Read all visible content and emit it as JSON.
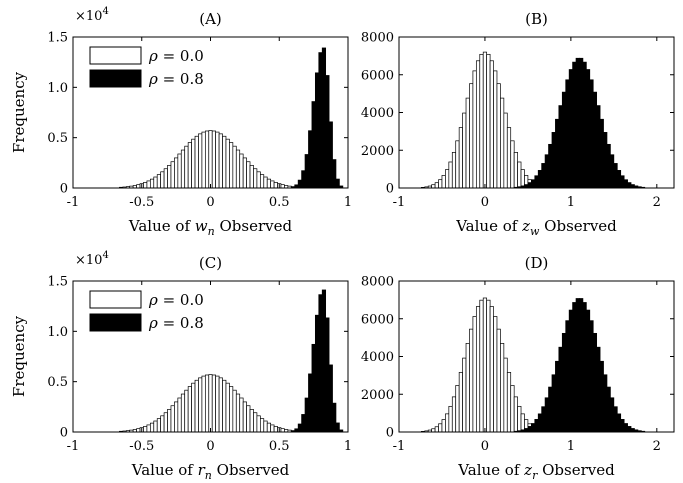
{
  "figure": {
    "panels": [
      {
        "title": "(A)",
        "ylabel": "Frequency",
        "xlabel_parts": [
          "Value of ",
          "w",
          "n",
          " Observed"
        ],
        "exponent_parts": [
          "×10",
          "4"
        ],
        "xticks": [
          "-1",
          "-0.5",
          "0",
          "0.5",
          "1"
        ],
        "yticks": [
          "0",
          "0.5",
          "1.0",
          "1.5"
        ],
        "legend": [
          {
            "sym": "ρ",
            "eq": " = 0.0",
            "fill": "#ffffff"
          },
          {
            "sym": "ρ",
            "eq": " = 0.8",
            "fill": "#000000"
          }
        ]
      },
      {
        "title": "(B)",
        "ylabel": "",
        "xlabel_parts": [
          "Value of ",
          "z",
          "w",
          " Observed"
        ],
        "exponent_parts": [
          "",
          ""
        ],
        "xticks": [
          "-1",
          "0",
          "1",
          "2"
        ],
        "yticks": [
          "0",
          "2000",
          "4000",
          "6000",
          "8000"
        ],
        "legend": []
      },
      {
        "title": "(C)",
        "ylabel": "Frequency",
        "xlabel_parts": [
          "Value of ",
          "r",
          "n",
          " Observed"
        ],
        "exponent_parts": [
          "×10",
          "4"
        ],
        "xticks": [
          "-1",
          "-0.5",
          "0",
          "0.5",
          "1"
        ],
        "yticks": [
          "0",
          "0.5",
          "1.0",
          "1.5"
        ],
        "legend": [
          {
            "sym": "ρ",
            "eq": " = 0.0",
            "fill": "#ffffff"
          },
          {
            "sym": "ρ",
            "eq": " = 0.8",
            "fill": "#000000"
          }
        ]
      },
      {
        "title": "(D)",
        "ylabel": "",
        "xlabel_parts": [
          "Value of ",
          "z",
          "r",
          " Observed"
        ],
        "exponent_parts": [
          "",
          ""
        ],
        "xticks": [
          "-1",
          "0",
          "1",
          "2"
        ],
        "yticks": [
          "0",
          "2000",
          "4000",
          "6000",
          "8000"
        ],
        "legend": []
      }
    ]
  },
  "chart_data": [
    {
      "type": "bar",
      "title": "(A)",
      "xlabel": "Value of w_n Observed",
      "ylabel": "Frequency",
      "y_multiplier": "×10^4",
      "xlim": [
        -1,
        1
      ],
      "ylim": [
        0,
        15000
      ],
      "bin_width": 0.025,
      "series": [
        {
          "name": "ρ = 0.0",
          "color": "#ffffff",
          "shape": "normal",
          "center": 0.0,
          "sd": 0.22,
          "peak": 5700,
          "bins": "-0.85 to 0.85"
        },
        {
          "name": "ρ = 0.8",
          "color": "#000000",
          "shape": "skewed",
          "mode": 0.82,
          "peak": 14000,
          "bins": "0.45 to 0.95"
        }
      ]
    },
    {
      "type": "bar",
      "title": "(B)",
      "xlabel": "Value of z_w Observed",
      "ylabel": "",
      "xlim": [
        -1,
        2.2
      ],
      "ylim": [
        0,
        8000
      ],
      "bin_width": 0.04,
      "series": [
        {
          "name": "ρ = 0.0",
          "color": "#ffffff",
          "shape": "normal",
          "center": 0.0,
          "sd": 0.22,
          "peak": 7200
        },
        {
          "name": "ρ = 0.8",
          "color": "#000000",
          "shape": "normal",
          "center": 1.1,
          "sd": 0.23,
          "peak": 6900
        }
      ]
    },
    {
      "type": "bar",
      "title": "(C)",
      "xlabel": "Value of r_n Observed",
      "ylabel": "Frequency",
      "y_multiplier": "×10^4",
      "xlim": [
        -1,
        1
      ],
      "ylim": [
        0,
        15000
      ],
      "bin_width": 0.025,
      "series": [
        {
          "name": "ρ = 0.0",
          "color": "#ffffff",
          "shape": "normal",
          "center": 0.0,
          "sd": 0.22,
          "peak": 5700,
          "bins": "-0.85 to 0.85"
        },
        {
          "name": "ρ = 0.8",
          "color": "#000000",
          "shape": "skewed",
          "mode": 0.82,
          "peak": 14200,
          "bins": "0.45 to 0.95"
        }
      ]
    },
    {
      "type": "bar",
      "title": "(D)",
      "xlabel": "Value of z_r Observed",
      "ylabel": "",
      "xlim": [
        -1,
        2.2
      ],
      "ylim": [
        0,
        8000
      ],
      "bin_width": 0.04,
      "series": [
        {
          "name": "ρ = 0.0",
          "color": "#ffffff",
          "shape": "normal",
          "center": 0.0,
          "sd": 0.22,
          "peak": 7100
        },
        {
          "name": "ρ = 0.8",
          "color": "#000000",
          "shape": "normal",
          "center": 1.1,
          "sd": 0.23,
          "peak": 7100
        }
      ]
    }
  ]
}
